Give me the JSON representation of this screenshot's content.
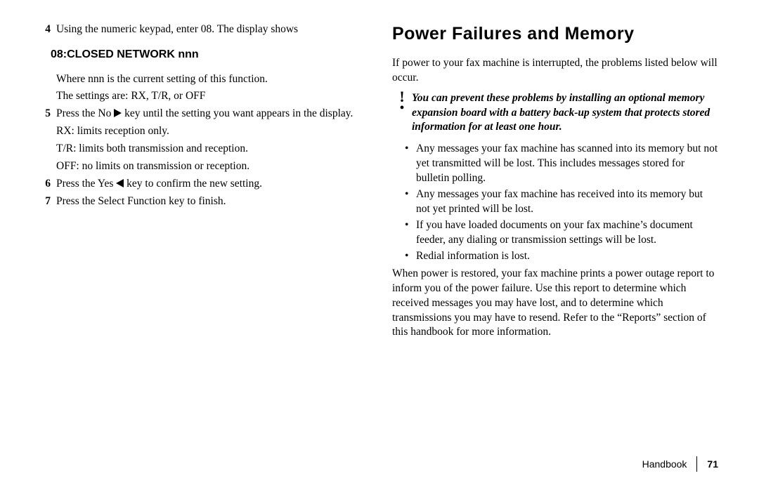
{
  "left": {
    "step4_num": "4",
    "step4_text": "Using the numeric keypad, enter 08. The display shows",
    "display_text": "08:CLOSED NETWORK nnn",
    "sub_where": "Where nnn is the current setting of this function.",
    "sub_settings": "The settings are: RX, T/R, or OFF",
    "step5_num": "5",
    "step5_a": "Press the No ",
    "step5_b": " key until the setting you want appears in the display.",
    "sub_rx": "RX: limits reception only.",
    "sub_tr": "T/R: limits both transmission and reception.",
    "sub_off": "OFF: no limits on transmission or reception.",
    "step6_num": "6",
    "step6_a": "Press the Yes ",
    "step6_b": " key to confirm the new setting.",
    "step7_num": "7",
    "step7_text": "Press the Select Function key to finish."
  },
  "right": {
    "heading": "Power Failures and Memory",
    "intro": "If power to your fax machine is interrupted, the problems listed below will occur.",
    "note": "You can prevent these problems by installing an optional memory expansion board with a battery back-up system that protects stored information for at least one hour.",
    "b1": "Any messages your fax machine has scanned into its memory but not yet transmitted will be lost. This includes messages stored for bulletin polling.",
    "b2": "Any messages your fax machine has received into its memory but not yet printed will be lost.",
    "b3": "If you have loaded documents on your fax machine’s document feeder, any dialing or transmission settings will be lost.",
    "b4": "Redial information is lost.",
    "outro": "When power is restored, your fax machine prints a power outage report to inform you of the power failure. Use this report to determine which received messages you may have lost, and to determine which transmissions you may have to resend. Refer to the “Reports” section of this handbook for more information."
  },
  "footer": {
    "label": "Handbook",
    "page": "71"
  }
}
